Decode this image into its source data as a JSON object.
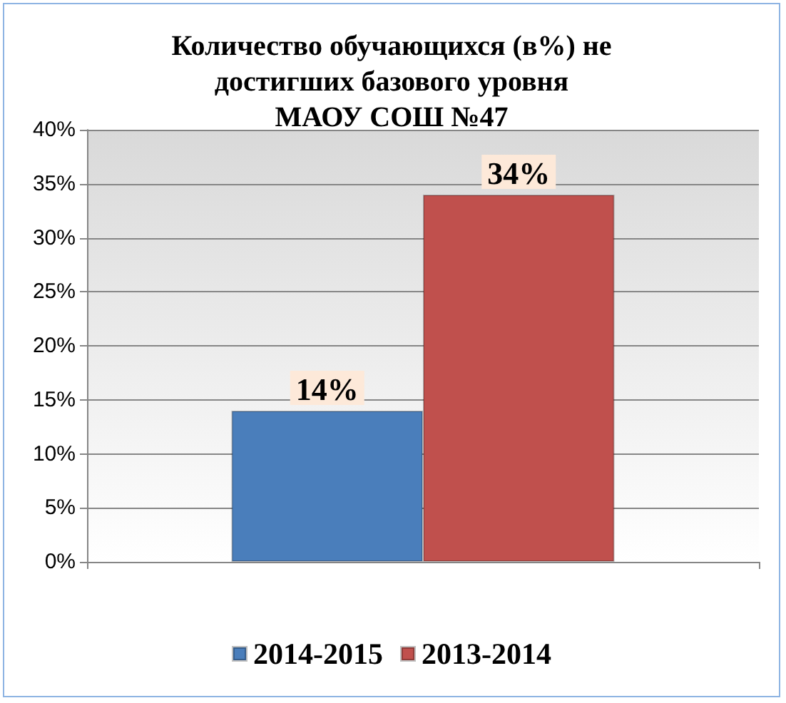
{
  "chart_data": {
    "type": "bar",
    "title": "Количество обучающихся (в%) не\nдостигших базового уровня\nМАОУ СОШ №47",
    "categories": [
      null
    ],
    "series": [
      {
        "name": "2014-2015",
        "color": "#4a7ebb",
        "values": [
          14
        ],
        "value_labels": [
          "14%"
        ]
      },
      {
        "name": "2013-2014",
        "color": "#c0504d",
        "values": [
          34
        ],
        "value_labels": [
          "34%"
        ]
      }
    ],
    "ylim": [
      0,
      40
    ],
    "yticks": [
      {
        "value": 0,
        "label": "0%"
      },
      {
        "value": 5,
        "label": "5%"
      },
      {
        "value": 10,
        "label": "10%"
      },
      {
        "value": 15,
        "label": "15%"
      },
      {
        "value": 20,
        "label": "20%"
      },
      {
        "value": 25,
        "label": "25%"
      },
      {
        "value": 30,
        "label": "30%"
      },
      {
        "value": 35,
        "label": "35%"
      },
      {
        "value": 40,
        "label": "40%"
      }
    ],
    "grid": "y",
    "legend": "bottom"
  }
}
